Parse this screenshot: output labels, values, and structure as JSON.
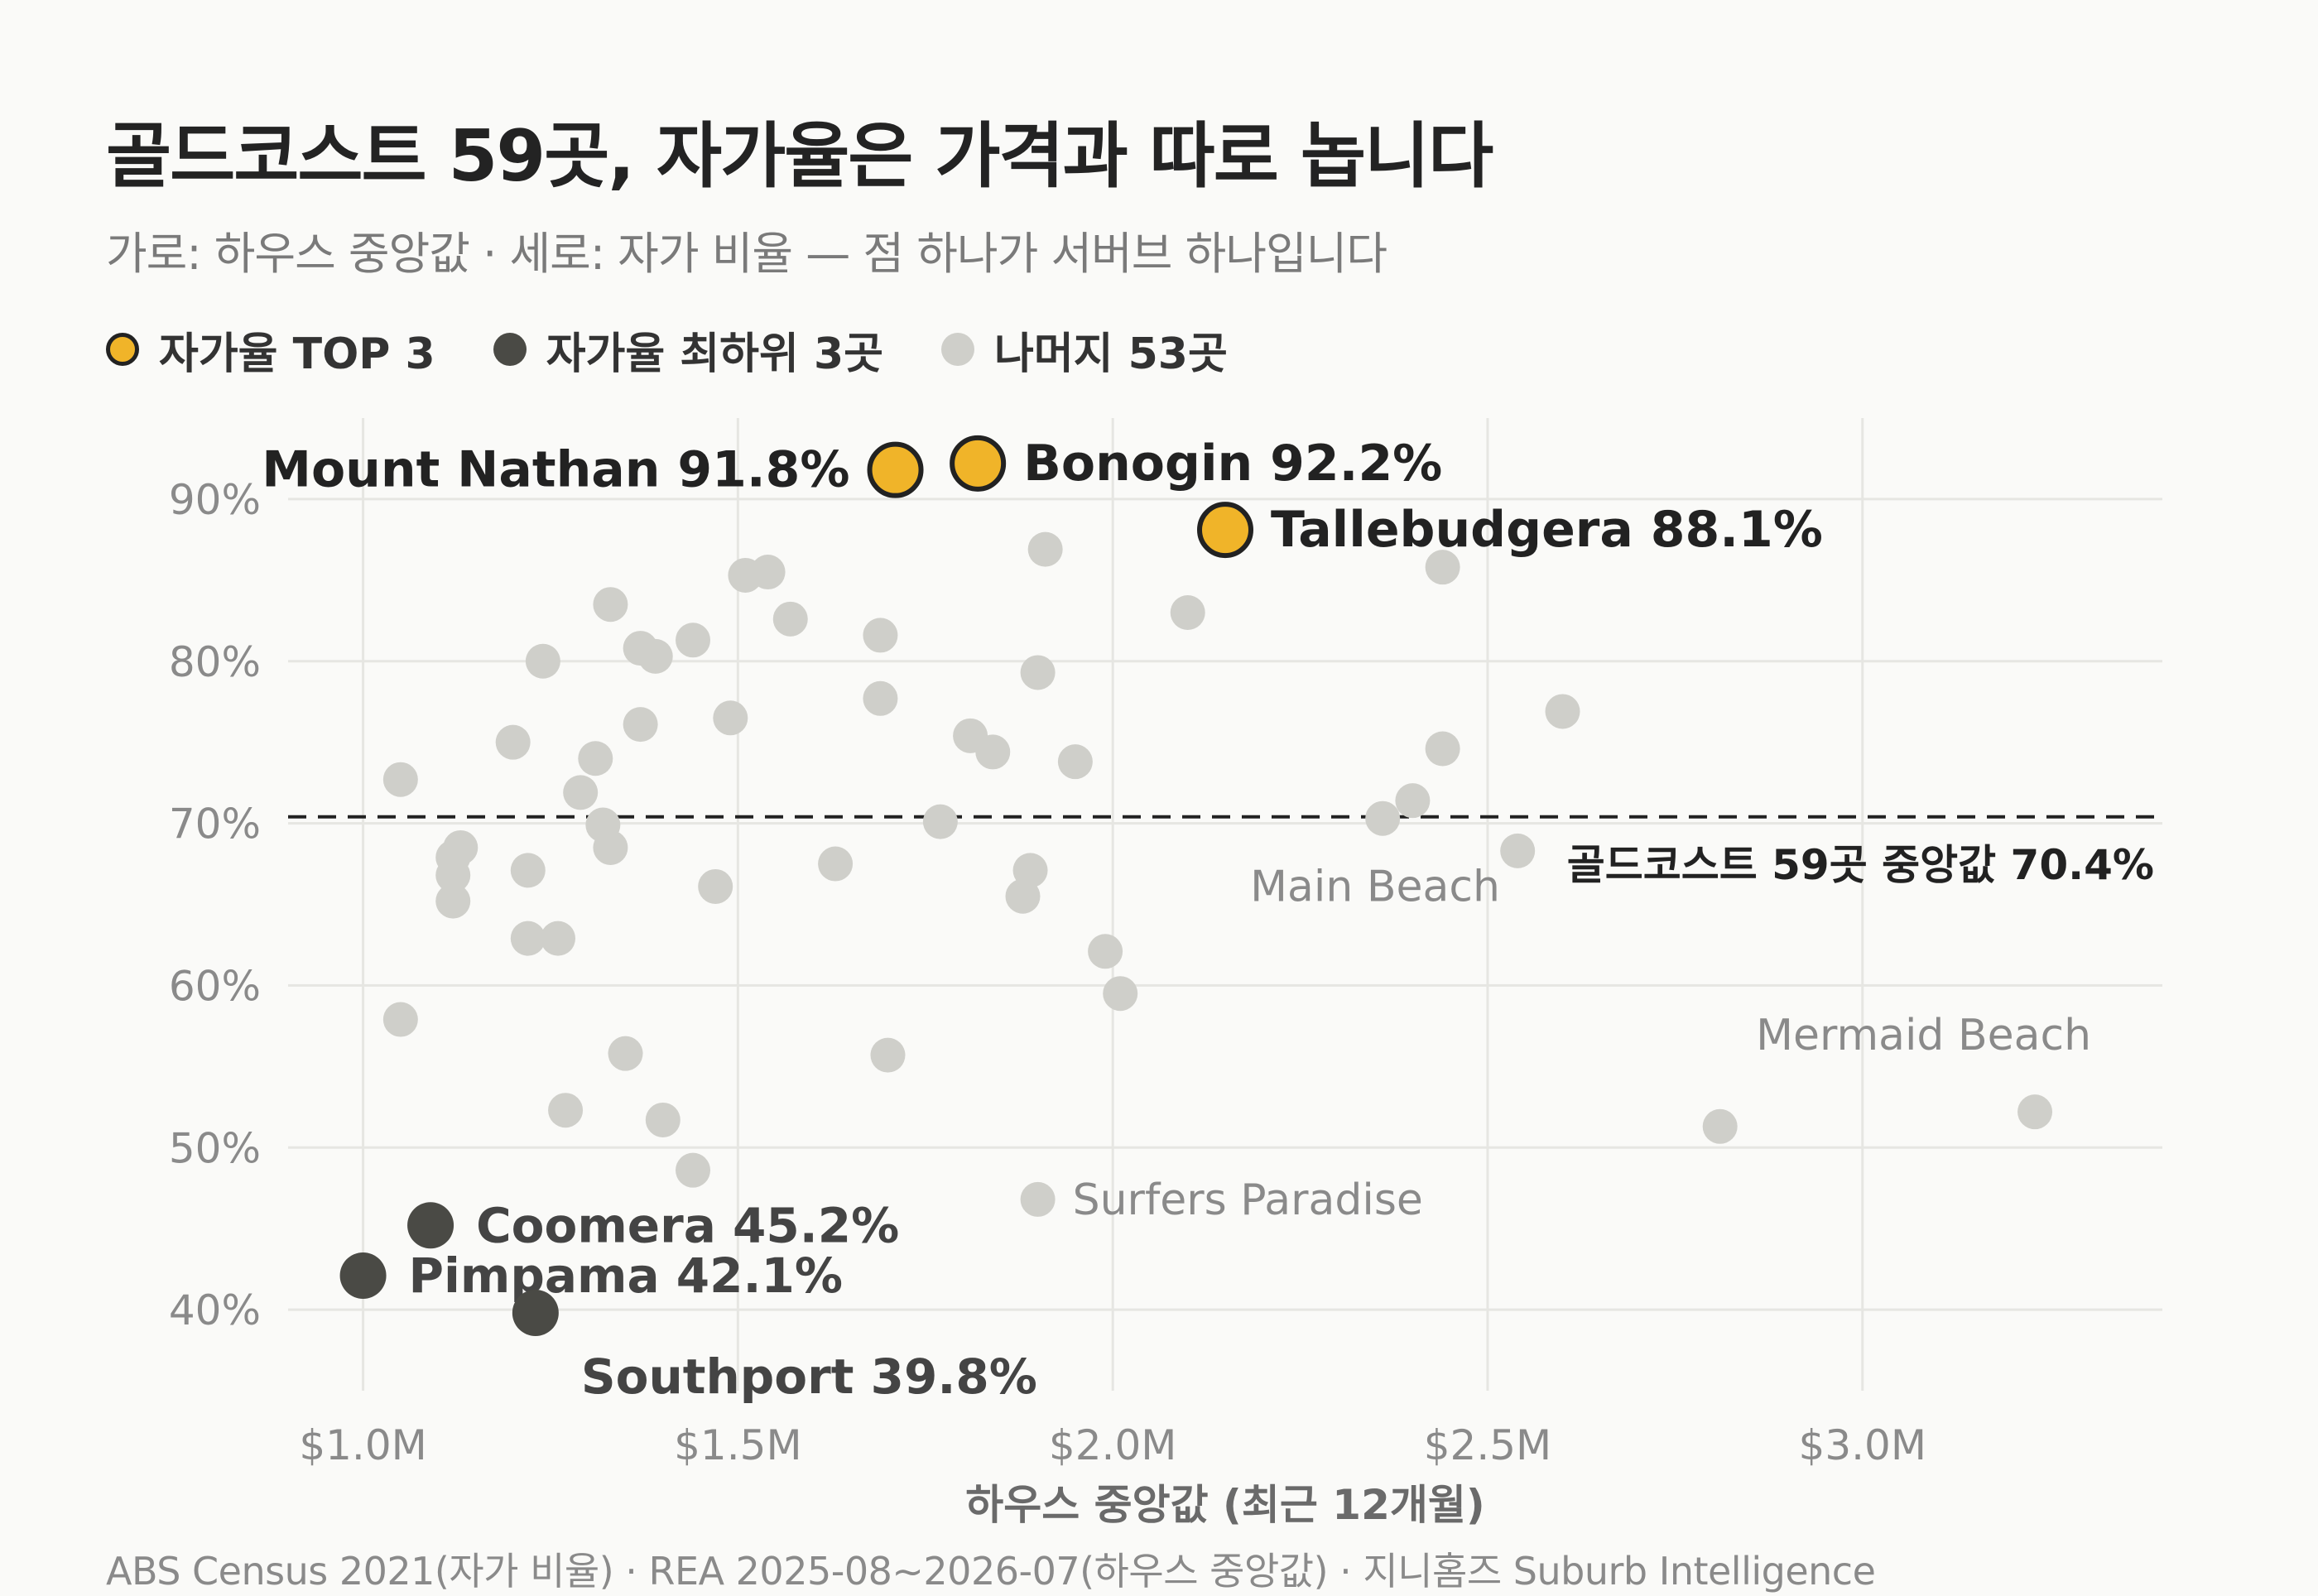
{
  "title": "골드코스트 59곳, 자가율은 가격과 따로 놉니다",
  "subtitle": "가로: 하우스 중앙값 · 세로: 자가 비율 — 점 하나가 서버브 하나입니다",
  "legend": {
    "top": "자가율 TOP 3",
    "low": "자가율 최하위 3곳",
    "rest": "나머지 53곳"
  },
  "source": "ABS Census 2021(자가 비율) · REA 2025-08~2026-07(하우스 중앙값) · 지니홈즈 Suburb Intelligence",
  "colors": {
    "top": "#f0b429",
    "low": "#4a4a45",
    "rest": "#cfcfca",
    "grid": "#e6e6e2"
  },
  "chart_data": {
    "type": "scatter",
    "xlabel": "하우스 중앙값 (최근 12개월)",
    "ylabel": "",
    "xlim": [
      0.9,
      3.4
    ],
    "ylim": [
      35,
      95
    ],
    "xticks": [
      1.0,
      1.5,
      2.0,
      2.5,
      3.0
    ],
    "xtick_labels": [
      "$1.0M",
      "$1.5M",
      "$2.0M",
      "$2.5M",
      "$3.0M"
    ],
    "yticks": [
      40,
      50,
      60,
      70,
      80,
      90
    ],
    "ytick_labels": [
      "40%",
      "50%",
      "60%",
      "70%",
      "80%",
      "90%"
    ],
    "grid": true,
    "legend_position": "top-left",
    "reference_line": {
      "y": 70.4,
      "label": "골드코스트 59곳 중앙값 70.4%"
    },
    "highlight_top": [
      {
        "label": "Bonogin 92.2%",
        "x": 1.82,
        "y": 92.2
      },
      {
        "label": "Mount Nathan 91.8%",
        "x": 1.71,
        "y": 91.8
      },
      {
        "label": "Tallebudgera 88.1%",
        "x": 2.15,
        "y": 88.1
      }
    ],
    "highlight_low": [
      {
        "label": "Coomera 45.2%",
        "x": 1.09,
        "y": 45.2
      },
      {
        "label": "Pimpama 42.1%",
        "x": 1.0,
        "y": 42.1
      },
      {
        "label": "Southport 39.8%",
        "x": 1.23,
        "y": 39.8
      }
    ],
    "annotated": [
      {
        "label": "Main Beach",
        "x": 2.36,
        "y": 70.3
      },
      {
        "label": "Mermaid Beach",
        "x": 3.23,
        "y": 52.2
      },
      {
        "label": "Surfers Paradise",
        "x": 1.9,
        "y": 46.8
      }
    ],
    "others": [
      [
        1.05,
        72.7
      ],
      [
        1.05,
        57.9
      ],
      [
        1.12,
        67.9
      ],
      [
        1.13,
        68.5
      ],
      [
        1.12,
        66.8
      ],
      [
        1.12,
        65.2
      ],
      [
        1.2,
        75.0
      ],
      [
        1.22,
        67.1
      ],
      [
        1.22,
        62.9
      ],
      [
        1.24,
        80.0
      ],
      [
        1.26,
        62.9
      ],
      [
        1.27,
        52.3
      ],
      [
        1.29,
        71.9
      ],
      [
        1.31,
        74.0
      ],
      [
        1.32,
        69.9
      ],
      [
        1.33,
        83.5
      ],
      [
        1.33,
        68.5
      ],
      [
        1.35,
        55.8
      ],
      [
        1.37,
        80.8
      ],
      [
        1.37,
        76.1
      ],
      [
        1.39,
        80.3
      ],
      [
        1.4,
        51.7
      ],
      [
        1.44,
        81.3
      ],
      [
        1.44,
        48.6
      ],
      [
        1.47,
        66.1
      ],
      [
        1.49,
        76.5
      ],
      [
        1.51,
        85.3
      ],
      [
        1.54,
        85.5
      ],
      [
        1.57,
        82.6
      ],
      [
        1.63,
        67.5
      ],
      [
        1.69,
        81.6
      ],
      [
        1.69,
        77.7
      ],
      [
        1.7,
        55.7
      ],
      [
        1.77,
        70.1
      ],
      [
        1.81,
        75.4
      ],
      [
        1.84,
        74.4
      ],
      [
        1.88,
        65.5
      ],
      [
        1.89,
        67.1
      ],
      [
        1.9,
        79.3
      ],
      [
        1.91,
        86.9
      ],
      [
        1.95,
        73.8
      ],
      [
        1.99,
        62.1
      ],
      [
        2.01,
        59.5
      ],
      [
        2.1,
        83.0
      ],
      [
        2.4,
        71.4
      ],
      [
        2.44,
        85.8
      ],
      [
        2.44,
        74.6
      ],
      [
        2.54,
        68.3
      ],
      [
        2.6,
        76.9
      ],
      [
        2.81,
        51.3
      ]
    ]
  }
}
